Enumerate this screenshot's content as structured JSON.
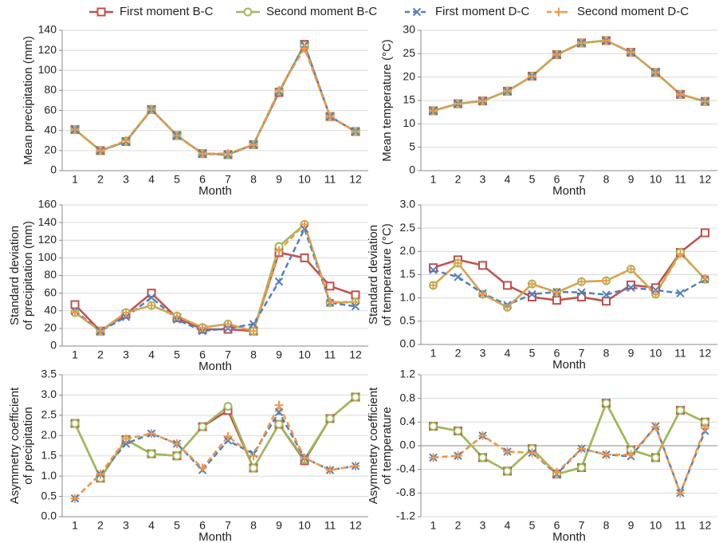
{
  "legend": [
    {
      "name": "First moment B-C",
      "color": "#c0504d",
      "marker": "square",
      "dash": false
    },
    {
      "name": "Second moment B-C",
      "color": "#9bbb59",
      "marker": "circle",
      "dash": false
    },
    {
      "name": "First moment D-C",
      "color": "#4f81bd",
      "marker": "x",
      "dash": true
    },
    {
      "name": "Second moment D-C",
      "color": "#f79646",
      "marker": "plus",
      "dash": true
    }
  ],
  "chart_data": [
    {
      "type": "line",
      "y_label": [
        "Mean precipitation (mm)"
      ],
      "x_label": "Month",
      "categories": [
        "1",
        "2",
        "3",
        "4",
        "5",
        "6",
        "7",
        "8",
        "9",
        "10",
        "11",
        "12"
      ],
      "ylim": [
        0,
        140
      ],
      "yticks": [
        0,
        20,
        40,
        60,
        80,
        100,
        120,
        140
      ],
      "grid": true,
      "series": [
        {
          "style": 0,
          "values": [
            41,
            20,
            29,
            61,
            35,
            17,
            16,
            26,
            78,
            126,
            54,
            39
          ]
        },
        {
          "style": 1,
          "values": [
            41,
            20,
            29,
            61,
            35,
            17,
            16,
            26,
            79,
            125,
            54,
            39
          ]
        },
        {
          "style": 2,
          "values": [
            41,
            20,
            29,
            61,
            35,
            17,
            16,
            26,
            79,
            125,
            54,
            39
          ]
        },
        {
          "style": 3,
          "values": [
            41,
            20,
            30,
            61,
            35,
            17,
            17,
            26,
            80,
            122,
            54,
            39
          ]
        }
      ]
    },
    {
      "type": "line",
      "y_label": [
        "Mean temperature (°C)"
      ],
      "x_label": "Month",
      "categories": [
        "1",
        "2",
        "3",
        "4",
        "5",
        "6",
        "7",
        "8",
        "9",
        "10",
        "11",
        "12"
      ],
      "ylim": [
        0,
        30
      ],
      "yticks": [
        0,
        5,
        10,
        15,
        20,
        25,
        30
      ],
      "grid": true,
      "series": [
        {
          "style": 0,
          "values": [
            12.8,
            14.3,
            14.9,
            17.0,
            20.2,
            24.8,
            27.3,
            27.8,
            25.3,
            21.0,
            16.3,
            14.8
          ]
        },
        {
          "style": 1,
          "values": [
            12.8,
            14.3,
            14.9,
            17.0,
            20.2,
            24.8,
            27.3,
            27.8,
            25.3,
            21.0,
            16.3,
            14.8
          ]
        },
        {
          "style": 2,
          "values": [
            12.8,
            14.3,
            14.9,
            17.0,
            20.2,
            24.8,
            27.3,
            27.8,
            25.3,
            21.0,
            16.3,
            14.8
          ]
        },
        {
          "style": 3,
          "values": [
            12.8,
            14.3,
            14.9,
            17.0,
            20.2,
            24.8,
            27.3,
            27.8,
            25.3,
            21.0,
            16.3,
            14.8
          ]
        }
      ]
    },
    {
      "type": "line",
      "y_label": [
        "Standard deviation",
        "of precipitation (mm)"
      ],
      "x_label": "Month",
      "categories": [
        "1",
        "2",
        "3",
        "4",
        "5",
        "6",
        "7",
        "8",
        "9",
        "10",
        "11",
        "12"
      ],
      "ylim": [
        0,
        160
      ],
      "yticks": [
        0,
        20,
        40,
        60,
        80,
        100,
        120,
        140,
        160
      ],
      "grid": true,
      "series": [
        {
          "style": 0,
          "values": [
            47,
            17,
            36,
            60,
            32,
            19,
            19,
            17,
            106,
            100,
            68,
            58
          ]
        },
        {
          "style": 1,
          "values": [
            38,
            17,
            38,
            46,
            34,
            21,
            25,
            17,
            113,
            138,
            49,
            50
          ]
        },
        {
          "style": 2,
          "values": [
            40,
            17,
            33,
            55,
            30,
            17,
            20,
            25,
            73,
            133,
            49,
            45
          ]
        },
        {
          "style": 3,
          "values": [
            38,
            17,
            38,
            46,
            34,
            21,
            25,
            17,
            108,
            138,
            50,
            50
          ]
        }
      ]
    },
    {
      "type": "line",
      "y_label": [
        "Standard deviation",
        "of temperature (°C)"
      ],
      "x_label": "Month",
      "categories": [
        "1",
        "2",
        "3",
        "4",
        "5",
        "6",
        "7",
        "8",
        "9",
        "10",
        "11",
        "12"
      ],
      "ylim": [
        0,
        3
      ],
      "yticks": [
        {
          "value": 0,
          "label": "0.0"
        },
        0.5,
        {
          "value": 1,
          "label": "1.0"
        },
        1.5,
        {
          "value": 2,
          "label": "2.0"
        },
        2.5,
        {
          "value": 3,
          "label": "3.0"
        }
      ],
      "grid": true,
      "series": [
        {
          "style": 0,
          "values": [
            1.65,
            1.82,
            1.7,
            1.27,
            1.02,
            0.95,
            1.02,
            0.93,
            1.28,
            1.22,
            1.98,
            2.4
          ]
        },
        {
          "style": 1,
          "values": [
            1.27,
            1.75,
            1.08,
            0.8,
            1.3,
            1.12,
            1.35,
            1.37,
            1.62,
            1.08,
            1.98,
            1.4
          ]
        },
        {
          "style": 2,
          "values": [
            1.6,
            1.45,
            1.1,
            0.85,
            1.08,
            1.13,
            1.12,
            1.07,
            1.22,
            1.17,
            1.1,
            1.4
          ]
        },
        {
          "style": 3,
          "values": [
            1.27,
            1.75,
            1.08,
            0.8,
            1.3,
            1.12,
            1.35,
            1.37,
            1.62,
            1.08,
            1.95,
            1.42
          ]
        }
      ]
    },
    {
      "type": "line",
      "y_label": [
        "Asymmetry coefficient",
        "of precipitation"
      ],
      "x_label": "Month",
      "categories": [
        "1",
        "2",
        "3",
        "4",
        "5",
        "6",
        "7",
        "8",
        "9",
        "10",
        "11",
        "12"
      ],
      "ylim": [
        0,
        3.5
      ],
      "yticks": [
        {
          "value": 0,
          "label": "0.0"
        },
        0.5,
        {
          "value": 1,
          "label": "1.0"
        },
        1.5,
        {
          "value": 2,
          "label": "2.0"
        },
        2.5,
        {
          "value": 3,
          "label": "3.0"
        },
        3.5
      ],
      "grid": true,
      "series": [
        {
          "style": 0,
          "values": [
            2.3,
            0.95,
            1.9,
            1.55,
            1.5,
            2.22,
            2.62,
            1.2,
            2.28,
            1.38,
            2.42,
            2.95
          ]
        },
        {
          "style": 1,
          "values": [
            2.3,
            0.95,
            1.9,
            1.55,
            1.5,
            2.22,
            2.72,
            1.2,
            2.28,
            1.42,
            2.42,
            2.95
          ]
        },
        {
          "style": 2,
          "values": [
            0.45,
            1.05,
            1.8,
            2.05,
            1.8,
            1.15,
            1.88,
            1.55,
            2.58,
            1.45,
            1.15,
            1.25
          ]
        },
        {
          "style": 3,
          "values": [
            0.45,
            1.05,
            1.92,
            2.05,
            1.8,
            1.2,
            1.98,
            1.5,
            2.75,
            1.45,
            1.15,
            1.25
          ]
        }
      ]
    },
    {
      "type": "line",
      "y_label": [
        "Asymmetry coefficient",
        "of temperature"
      ],
      "x_label": "Month",
      "categories": [
        "1",
        "2",
        "3",
        "4",
        "5",
        "6",
        "7",
        "8",
        "9",
        "10",
        "11",
        "12"
      ],
      "ylim": [
        -1.2,
        1.2
      ],
      "yticks": [
        -1.2,
        -0.8,
        -0.4,
        {
          "value": 0,
          "label": "0.0"
        },
        0.4,
        0.8,
        1.2
      ],
      "grid": true,
      "series": [
        {
          "style": 0,
          "values": [
            0.33,
            0.25,
            -0.2,
            -0.43,
            -0.05,
            -0.48,
            -0.37,
            0.72,
            -0.07,
            -0.2,
            0.6,
            0.4
          ]
        },
        {
          "style": 1,
          "values": [
            0.33,
            0.25,
            -0.2,
            -0.43,
            -0.05,
            -0.48,
            -0.37,
            0.72,
            -0.07,
            -0.2,
            0.6,
            0.4
          ]
        },
        {
          "style": 2,
          "values": [
            -0.2,
            -0.17,
            0.17,
            -0.1,
            -0.12,
            -0.48,
            -0.05,
            -0.15,
            -0.18,
            0.33,
            -0.8,
            0.25
          ]
        },
        {
          "style": 3,
          "values": [
            -0.2,
            -0.17,
            0.17,
            -0.1,
            -0.12,
            -0.45,
            -0.05,
            -0.15,
            -0.15,
            0.32,
            -0.8,
            0.3
          ]
        }
      ]
    }
  ]
}
